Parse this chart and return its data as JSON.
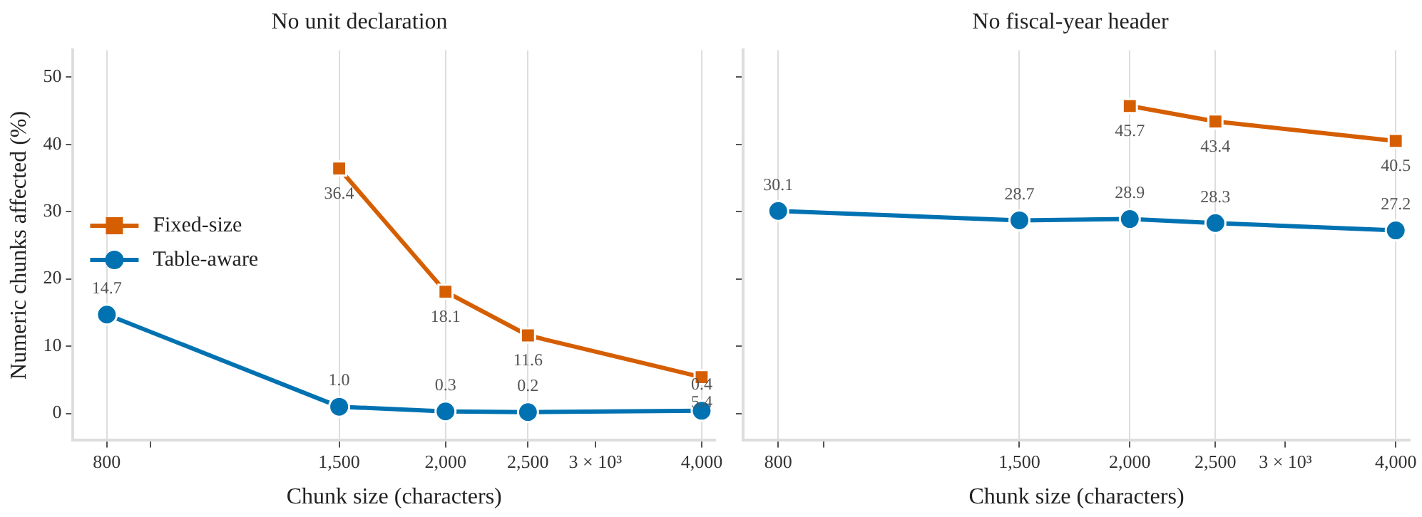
{
  "chart_data": [
    {
      "type": "line",
      "title": "No unit declaration",
      "xlabel": "Chunk size (characters)",
      "ylabel": "Numeric chunks affected (%)",
      "x": [
        800,
        1500,
        2000,
        2500,
        4000
      ],
      "log": "x",
      "xlim": [
        730,
        4150
      ],
      "xticks": [
        800,
        {
          "value": 900,
          "label": null
        },
        {
          "value": 1500,
          "label": "1,500"
        },
        {
          "value": 2000,
          "label": "2,000"
        },
        {
          "value": 2500,
          "label": "2,500"
        },
        {
          "value": 3000,
          "label": "3 × 10³"
        },
        {
          "value": 4000,
          "label": "4,000"
        }
      ],
      "ylim": [
        -4,
        54
      ],
      "yticks": [
        0,
        10,
        20,
        30,
        40,
        50
      ],
      "grid": "x",
      "legend": "left",
      "line_style": "solid",
      "series": [
        {
          "name": "Fixed-size",
          "color": "#d55e00",
          "marker": "square",
          "values": [
            null,
            36.4,
            18.1,
            11.6,
            5.4
          ],
          "value_labels": [
            null,
            "36.4",
            "18.1",
            "11.6",
            "5.4"
          ]
        },
        {
          "name": "Table-aware",
          "color": "#0072b2",
          "marker": "circle",
          "values": [
            14.7,
            1.0,
            0.3,
            0.2,
            0.4
          ],
          "value_labels": [
            "14.7",
            "1.0",
            "0.3",
            "0.2",
            "0.4"
          ]
        }
      ]
    },
    {
      "type": "line",
      "title": "No fiscal-year header",
      "xlabel": "Chunk size (characters)",
      "x": [
        800,
        1500,
        2000,
        2500,
        4000
      ],
      "log": "x",
      "xlim": [
        730,
        4150
      ],
      "xticks": [
        800,
        {
          "value": 900,
          "label": null
        },
        {
          "value": 1500,
          "label": "1,500"
        },
        {
          "value": 2000,
          "label": "2,000"
        },
        {
          "value": 2500,
          "label": "2,500"
        },
        {
          "value": 3000,
          "label": "3 × 10³"
        },
        {
          "value": 4000,
          "label": "4,000"
        }
      ],
      "ylim": [
        -4,
        54
      ],
      "yticks": [
        0,
        10,
        20,
        30,
        40,
        50
      ],
      "grid": "x",
      "tick_labels": "x",
      "line_style": "solid",
      "series": [
        {
          "color": "#d55e00",
          "marker": "square",
          "values": [
            null,
            null,
            45.7,
            43.4,
            40.5
          ],
          "value_labels": [
            null,
            null,
            "45.7",
            "43.4",
            "40.5"
          ]
        },
        {
          "color": "#0072b2",
          "marker": "circle",
          "values": [
            30.1,
            28.7,
            28.9,
            28.3,
            27.2
          ],
          "value_labels": [
            "30.1",
            "28.7",
            "28.9",
            "28.3",
            "27.2"
          ]
        }
      ]
    }
  ]
}
